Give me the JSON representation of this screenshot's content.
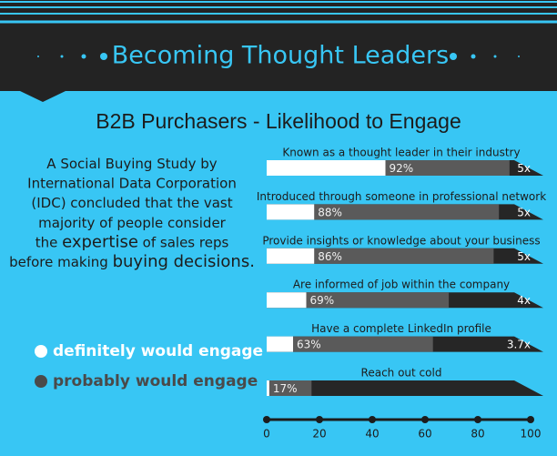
{
  "header": {
    "title": "Becoming Thought Leaders"
  },
  "description": [
    [
      "A Social Buying Study by"
    ],
    [
      "International Data Corporation"
    ],
    [
      "(IDC) concluded that the vast"
    ],
    [
      "majority of people consider"
    ],
    [
      "the ",
      "expertise",
      " of sales reps"
    ],
    [
      "before making ",
      "buying decisions."
    ]
  ],
  "chart_data": {
    "type": "bar",
    "orientation": "horizontal",
    "title": "B2B Purchasers - Likelihood to Engage",
    "categories": [
      "Known as a thought leader in their industry",
      "Introduced through someone in professional network",
      "Provide insights or knowledge about your business",
      "Are informed of job within the company",
      "Have a complete LinkedIn profile",
      "Reach out cold"
    ],
    "series": [
      {
        "name": "definitely would engage",
        "color": "#ffffff",
        "values": [
          45,
          18,
          18,
          15,
          10,
          1
        ]
      },
      {
        "name": "probably would engage",
        "color": "#5a5a5a",
        "values": [
          92,
          88,
          86,
          69,
          63,
          17
        ],
        "value_labels": [
          "92%",
          "88%",
          "86%",
          "69%",
          "63%",
          "17%"
        ]
      }
    ],
    "multipliers": [
      "5x",
      "5x",
      "5x",
      "4x",
      "3.7x",
      null
    ],
    "xlim": [
      0,
      100
    ],
    "xticks": [
      0,
      20,
      40,
      60,
      80,
      100
    ]
  }
}
